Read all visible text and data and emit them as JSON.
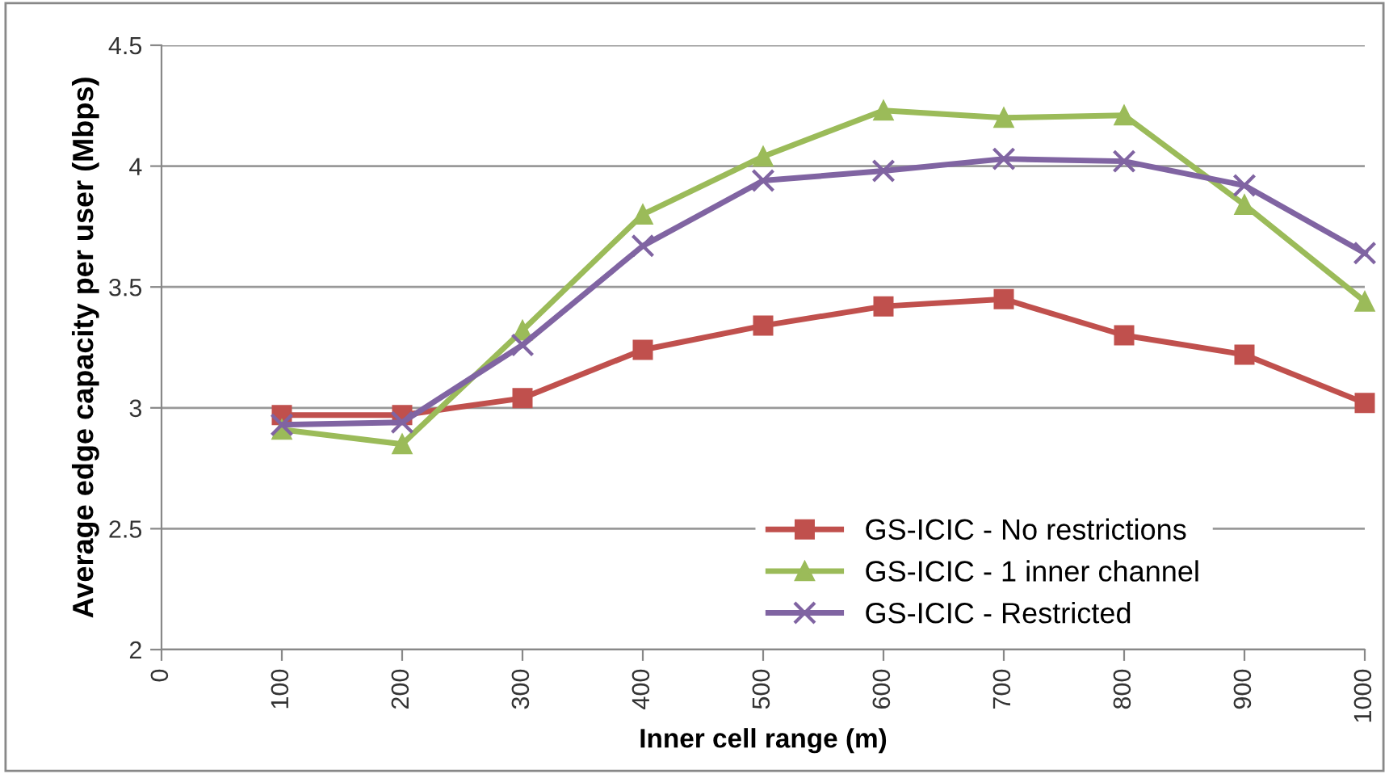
{
  "chart_data": {
    "type": "line",
    "xlabel": "Inner cell range (m)",
    "ylabel": "Average edge capacity per user (Mbps)",
    "x": [
      100,
      200,
      300,
      400,
      500,
      600,
      700,
      800,
      900,
      1000
    ],
    "series": [
      {
        "name": "GS-ICIC - No restrictions",
        "color": "#c0504d",
        "marker": "square",
        "values": [
          2.97,
          2.97,
          3.04,
          3.24,
          3.34,
          3.42,
          3.45,
          3.3,
          3.22,
          3.02
        ]
      },
      {
        "name": "GS-ICIC - 1 inner channel",
        "color": "#9bbb59",
        "marker": "triangle",
        "values": [
          2.91,
          2.85,
          3.32,
          3.8,
          4.04,
          4.23,
          4.2,
          4.21,
          3.84,
          3.44
        ]
      },
      {
        "name": "GS-ICIC - Restricted",
        "color": "#8064a2",
        "marker": "cross",
        "values": [
          2.93,
          2.94,
          3.26,
          3.67,
          3.94,
          3.98,
          4.03,
          4.02,
          3.92,
          3.64
        ]
      }
    ],
    "xlim": [
      0,
      1000
    ],
    "xticks": [
      0,
      100,
      200,
      300,
      400,
      500,
      600,
      700,
      800,
      900,
      1000
    ],
    "ylim": [
      2,
      4.5
    ],
    "yticks": [
      2,
      2.5,
      3,
      3.5,
      4,
      4.5
    ],
    "grid": "y",
    "legend": "bottom right",
    "line_style": "solid"
  }
}
